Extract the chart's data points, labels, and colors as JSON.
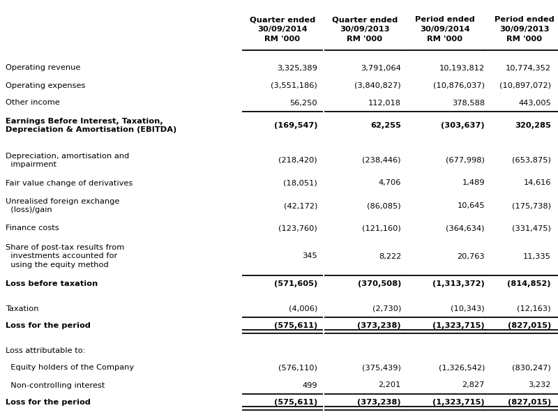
{
  "col_headers": [
    "Quarter ended\n30/09/2014\nRM '000",
    "Quarter ended\n30/09/2013\nRM '000",
    "Period ended\n30/09/2014\nRM '000",
    "Period ended\n30/09/2013\nRM '000"
  ],
  "rows": [
    {
      "label": "Operating revenue",
      "bold": false,
      "values": [
        "3,325,389",
        "3,791,064",
        "10,193,812",
        "10,774,352"
      ],
      "line_above": false,
      "double_line_below": false,
      "spacer": false
    },
    {
      "label": "Operating expenses",
      "bold": false,
      "values": [
        "(3,551,186)",
        "(3,840,827)",
        "(10,876,037)",
        "(10,897,072)"
      ],
      "line_above": false,
      "double_line_below": false,
      "spacer": false
    },
    {
      "label": "Other income",
      "bold": false,
      "values": [
        "56,250",
        "112,018",
        "378,588",
        "443,005"
      ],
      "line_above": false,
      "double_line_below": false,
      "spacer": false
    },
    {
      "label": "Earnings Before Interest, Taxation,\nDepreciation & Amortisation (EBITDA)",
      "bold": true,
      "values": [
        "(169,547)",
        "62,255",
        "(303,637)",
        "320,285"
      ],
      "line_above": true,
      "double_line_below": false,
      "spacer": false
    },
    {
      "label": "",
      "bold": false,
      "values": [
        "",
        "",
        "",
        ""
      ],
      "line_above": false,
      "double_line_below": false,
      "spacer": true
    },
    {
      "label": "Depreciation, amortisation and\n  impairment",
      "bold": false,
      "values": [
        "(218,420)",
        "(238,446)",
        "(677,998)",
        "(653,875)"
      ],
      "line_above": false,
      "double_line_below": false,
      "spacer": false
    },
    {
      "label": "Fair value change of derivatives",
      "bold": false,
      "values": [
        "(18,051)",
        "4,706",
        "1,489",
        "14,616"
      ],
      "line_above": false,
      "double_line_below": false,
      "spacer": false
    },
    {
      "label": "Unrealised foreign exchange\n  (loss)/gain",
      "bold": false,
      "values": [
        "(42,172)",
        "(86,085)",
        "10,645",
        "(175,738)"
      ],
      "line_above": false,
      "double_line_below": false,
      "spacer": false
    },
    {
      "label": "Finance costs",
      "bold": false,
      "values": [
        "(123,760)",
        "(121,160)",
        "(364,634)",
        "(331,475)"
      ],
      "line_above": false,
      "double_line_below": false,
      "spacer": false
    },
    {
      "label": "Share of post-tax results from\n  investments accounted for\n  using the equity method",
      "bold": false,
      "values": [
        "345",
        "8,222",
        "20,763",
        "11,335"
      ],
      "line_above": false,
      "double_line_below": false,
      "spacer": false
    },
    {
      "label": "Loss before taxation",
      "bold": true,
      "values": [
        "(571,605)",
        "(370,508)",
        "(1,313,372)",
        "(814,852)"
      ],
      "line_above": true,
      "double_line_below": false,
      "spacer": false
    },
    {
      "label": "",
      "bold": false,
      "values": [
        "",
        "",
        "",
        ""
      ],
      "line_above": false,
      "double_line_below": false,
      "spacer": true
    },
    {
      "label": "Taxation",
      "bold": false,
      "values": [
        "(4,006)",
        "(2,730)",
        "(10,343)",
        "(12,163)"
      ],
      "line_above": false,
      "double_line_below": false,
      "spacer": false
    },
    {
      "label": "Loss for the period",
      "bold": true,
      "values": [
        "(575,611)",
        "(373,238)",
        "(1,323,715)",
        "(827,015)"
      ],
      "line_above": true,
      "double_line_below": true,
      "spacer": false
    },
    {
      "label": "",
      "bold": false,
      "values": [
        "",
        "",
        "",
        ""
      ],
      "line_above": false,
      "double_line_below": false,
      "spacer": true
    },
    {
      "label": "Loss attributable to:",
      "bold": false,
      "values": [
        "",
        "",
        "",
        ""
      ],
      "line_above": false,
      "double_line_below": false,
      "spacer": false
    },
    {
      "label": "  Equity holders of the Company",
      "bold": false,
      "values": [
        "(576,110)",
        "(375,439)",
        "(1,326,542)",
        "(830,247)"
      ],
      "line_above": false,
      "double_line_below": false,
      "spacer": false
    },
    {
      "label": "  Non-controlling interest",
      "bold": false,
      "values": [
        "499",
        "2,201",
        "2,827",
        "3,232"
      ],
      "line_above": false,
      "double_line_below": false,
      "spacer": false
    },
    {
      "label": "Loss for the period",
      "bold": true,
      "values": [
        "(575,611)",
        "(373,238)",
        "(1,323,715)",
        "(827,015)"
      ],
      "line_above": true,
      "double_line_below": true,
      "spacer": false
    }
  ],
  "bg_color": "#ffffff",
  "text_color": "#000000",
  "font_size": 8.2,
  "header_font_size": 8.2
}
